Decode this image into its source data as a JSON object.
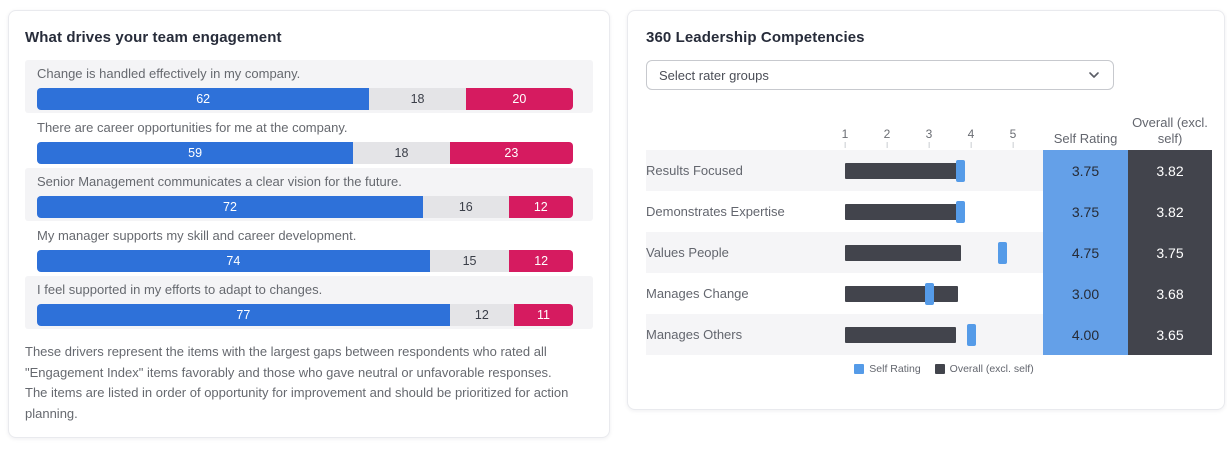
{
  "left_panel": {
    "title": "What drives your team engagement",
    "footnote": "These drivers represent the items with the largest gaps between respondents who rated all \"Engagement Index\" items favorably and those who gave neutral or unfavorable responses. The items are listed in order of opportunity for improvement and should be prioritized for action planning."
  },
  "right_panel": {
    "title": "360 Leadership Competencies",
    "dropdown_placeholder": "Select rater groups",
    "axis_ticks": [
      "1",
      "2",
      "3",
      "4",
      "5"
    ],
    "columns": {
      "self": "Self Rating",
      "overall": "Overall (excl. self)"
    },
    "legend": [
      {
        "label": "Self Rating",
        "color": "#559be8"
      },
      {
        "label": "Overall (excl. self)",
        "color": "#42444c"
      }
    ]
  },
  "colors": {
    "favorable": "#2e71d9",
    "neutral": "#e4e4e7",
    "unfavorable": "#d61b60",
    "self_marker": "#559be8",
    "overall_bar": "#42444c",
    "self_col_bg": "#64a0e8",
    "overall_col_bg": "#42444c",
    "row_stripe": "#f4f4f6"
  },
  "chart_data": [
    {
      "type": "bar",
      "stacked": true,
      "title": "What drives your team engagement",
      "categories": [
        "Change is handled effectively in my company.",
        "There are career opportunities for me at the company.",
        "Senior Management communicates a clear vision for the future.",
        "My manager supports my skill and career development.",
        "I feel supported in my efforts to adapt to changes."
      ],
      "series": [
        {
          "name": "Favorable",
          "color": "#2e71d9",
          "values": [
            62,
            59,
            72,
            74,
            77
          ]
        },
        {
          "name": "Neutral",
          "color": "#e4e4e7",
          "values": [
            18,
            18,
            16,
            15,
            12
          ]
        },
        {
          "name": "Unfavorable",
          "color": "#d61b60",
          "values": [
            20,
            23,
            12,
            12,
            11
          ]
        }
      ],
      "xlim": [
        0,
        100
      ],
      "orientation": "horizontal",
      "data_labels": true,
      "legend_position": "none"
    },
    {
      "type": "bar",
      "title": "360 Leadership Competencies",
      "categories": [
        "Results Focused",
        "Demonstrates Expertise",
        "Values People",
        "Manages Change",
        "Manages Others"
      ],
      "series": [
        {
          "name": "Self Rating",
          "color": "#559be8",
          "values": [
            3.75,
            3.75,
            4.75,
            3.0,
            4.0
          ]
        },
        {
          "name": "Overall (excl. self)",
          "color": "#42444c",
          "values": [
            3.82,
            3.82,
            3.75,
            3.68,
            3.65
          ]
        }
      ],
      "xlim": [
        1,
        5
      ],
      "orientation": "horizontal",
      "grid": false,
      "legend_position": "bottom"
    }
  ]
}
